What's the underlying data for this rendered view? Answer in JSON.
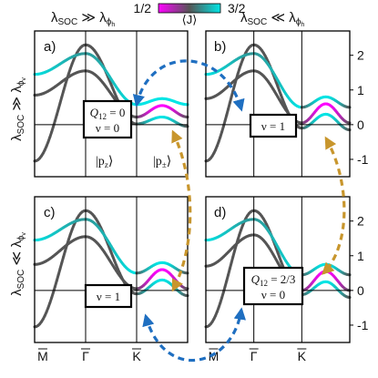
{
  "colorbar": {
    "low_label": "1/2",
    "mid_label": "⟨J⟩",
    "high_label": "3/2",
    "colors": [
      "#ff00ff",
      "#555555",
      "#00e5e5"
    ]
  },
  "header": {
    "left": {
      "main": "λ",
      "sub1": "SOC",
      "rel": " ≫ λ",
      "sub2": "ϕ",
      "sub3": "h"
    },
    "right": {
      "main": "λ",
      "sub1": "SOC",
      "rel": " ≪ λ",
      "sub2": "ϕ",
      "sub3": "h"
    }
  },
  "row_labels": {
    "top": {
      "main": "λ",
      "sub1": "SOC",
      "rel": " ≫ λ",
      "sub2": "ϕ",
      "sub3": "v"
    },
    "bottom": {
      "main": "λ",
      "sub1": "SOC",
      "rel": " ≪ λ",
      "sub2": "ϕ",
      "sub3": "v"
    }
  },
  "panels": [
    {
      "label": "a)",
      "box": {
        "q": "Q",
        "qsub": "12",
        "qval": " = 0",
        "nu": "ν = 0"
      },
      "orbitals": [
        "|p",
        "z",
        "⟩",
        "|p",
        "±",
        "⟩"
      ]
    },
    {
      "label": "b)",
      "box": {
        "q": "",
        "qsub": "",
        "qval": "",
        "nu": "ν = 1"
      }
    },
    {
      "label": "c)",
      "box": {
        "q": "",
        "qsub": "",
        "qval": "",
        "nu": "ν = 1"
      }
    },
    {
      "label": "d)",
      "box": {
        "q": "Q",
        "qsub": "12",
        "qval": " = 2/3",
        "nu": "ν = 0"
      }
    }
  ],
  "colors": {
    "accent_blue": "#1f6fc1",
    "accent_gold": "#c8962d"
  },
  "chart_data": {
    "type": "line",
    "x_ticks": [
      "M",
      "Γ",
      "K"
    ],
    "y_ticks": [
      -1,
      0,
      1,
      2
    ],
    "ylim": [
      -1.5,
      2.7
    ],
    "color_scale": {
      "quantity": "⟨J⟩",
      "min": 0.5,
      "max": 1.5
    },
    "panels": [
      {
        "id": "a",
        "bands": [
          {
            "x": [
              0,
              0.5,
              1.0,
              1.25,
              1.5
            ],
            "y": [
              -1.05,
              2.3,
              0.02,
              0.22,
              -0.05
            ]
          },
          {
            "x": [
              0,
              0.5,
              1.0,
              1.25,
              1.5
            ],
            "y": [
              0.85,
              1.55,
              0.22,
              0.55,
              0.22
            ]
          },
          {
            "x": [
              0,
              0.5,
              1.0,
              1.25,
              1.5
            ],
            "y": [
              1.45,
              2.05,
              0.58,
              0.75,
              0.58
            ]
          }
        ]
      },
      {
        "id": "b",
        "bands": [
          {
            "x": [
              0,
              0.5,
              1.0,
              1.25,
              1.5
            ],
            "y": [
              -1.05,
              2.3,
              -0.1,
              0.3,
              -0.15
            ]
          },
          {
            "x": [
              0,
              0.5,
              1.0,
              1.25,
              1.5
            ],
            "y": [
              0.75,
              1.55,
              0.05,
              0.6,
              0.05
            ]
          },
          {
            "x": [
              0,
              0.5,
              1.0,
              1.25,
              1.5
            ],
            "y": [
              1.45,
              2.05,
              0.5,
              0.8,
              0.5
            ]
          }
        ]
      },
      {
        "id": "c",
        "bands": [
          {
            "x": [
              0,
              0.5,
              1.0,
              1.25,
              1.5
            ],
            "y": [
              -1.05,
              2.3,
              -0.1,
              0.3,
              -0.15
            ]
          },
          {
            "x": [
              0,
              0.5,
              1.0,
              1.25,
              1.5
            ],
            "y": [
              0.75,
              1.55,
              0.05,
              0.6,
              0.05
            ]
          },
          {
            "x": [
              0,
              0.5,
              1.0,
              1.25,
              1.5
            ],
            "y": [
              1.45,
              2.05,
              0.5,
              0.8,
              0.5
            ]
          }
        ]
      },
      {
        "id": "d",
        "bands": [
          {
            "x": [
              0,
              0.5,
              1.0,
              1.25,
              1.5
            ],
            "y": [
              -1.05,
              2.3,
              -0.12,
              0.25,
              -0.2
            ]
          },
          {
            "x": [
              0,
              0.5,
              1.0,
              1.25,
              1.5
            ],
            "y": [
              0.7,
              1.6,
              0.0,
              0.55,
              0.0
            ]
          },
          {
            "x": [
              0,
              0.5,
              1.0,
              1.25,
              1.5
            ],
            "y": [
              1.45,
              2.05,
              0.45,
              0.75,
              0.45
            ]
          }
        ]
      }
    ]
  }
}
